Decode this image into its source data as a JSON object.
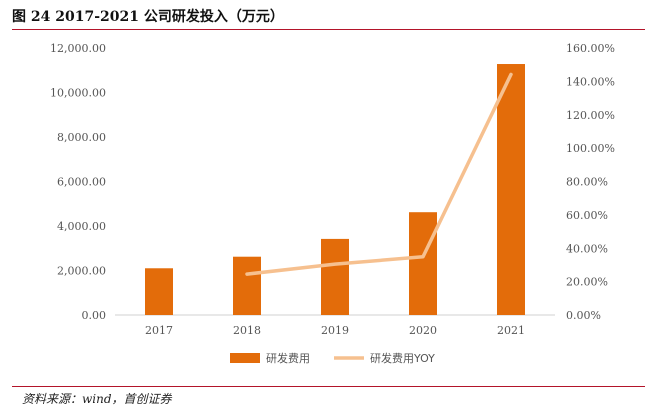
{
  "figure": {
    "title": "图 24 2017-2021 公司研发投入（万元）",
    "source": "资料来源：wind，首创证券"
  },
  "colors": {
    "bar": "#e36c0a",
    "line": "#f6c08f",
    "rule": "#b3142a"
  },
  "chart_data": {
    "type": "bar",
    "categories": [
      "2017",
      "2018",
      "2019",
      "2020",
      "2021"
    ],
    "series": [
      {
        "name": "研发费用",
        "type": "bar",
        "axis": "left",
        "values": [
          2100,
          2620,
          3420,
          4620,
          11280
        ]
      },
      {
        "name": "研发费用YOY",
        "type": "line",
        "axis": "right",
        "values": [
          null,
          24.5,
          30.5,
          34.9,
          144.2
        ]
      }
    ],
    "y_left": {
      "min": 0,
      "max": 12000,
      "ticks": [
        "0.00",
        "2,000.00",
        "4,000.00",
        "6,000.00",
        "8,000.00",
        "10,000.00",
        "12,000.00"
      ]
    },
    "y_right": {
      "min": 0,
      "max": 160,
      "unit": "%",
      "ticks": [
        "0.00%",
        "20.00%",
        "40.00%",
        "60.00%",
        "80.00%",
        "100.00%",
        "120.00%",
        "140.00%",
        "160.00%"
      ]
    },
    "grid": false,
    "legend": "bottom"
  }
}
